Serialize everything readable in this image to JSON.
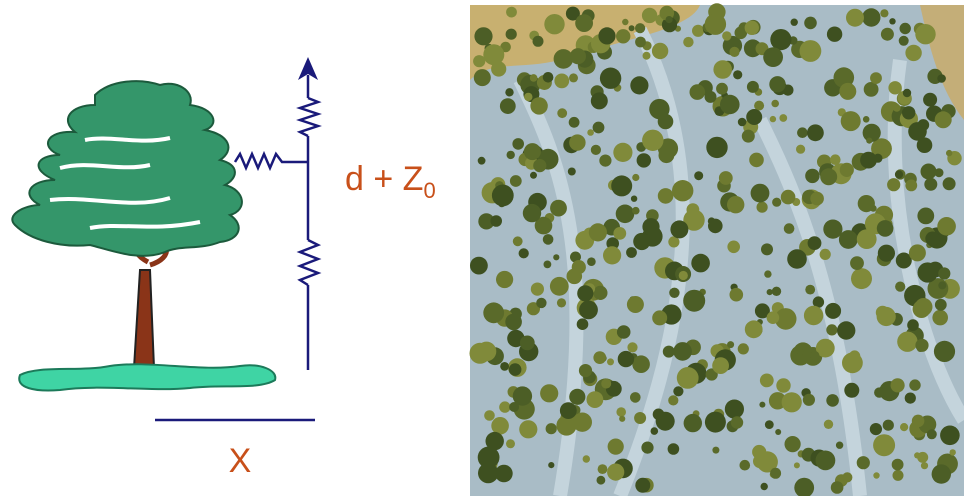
{
  "labels": {
    "height": {
      "main": "d + Z",
      "subscript": "0"
    },
    "distance": "X"
  }
}
